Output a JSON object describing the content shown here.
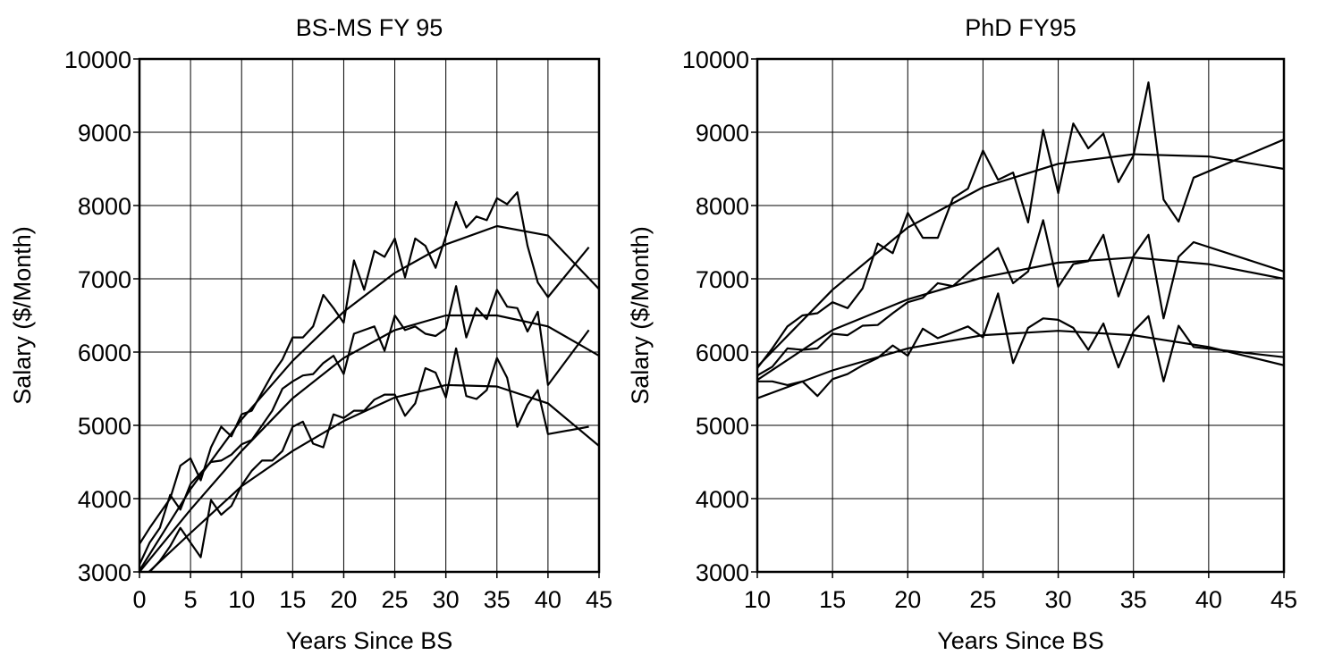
{
  "chart_data": [
    {
      "type": "line",
      "title": "BS-MS FY 95",
      "xlabel": "Years Since BS",
      "ylabel": "Salary ($/Month)",
      "xlim": [
        0,
        45
      ],
      "ylim": [
        3000,
        10000
      ],
      "xticks": [
        0,
        5,
        10,
        15,
        20,
        25,
        30,
        35,
        40,
        45
      ],
      "yticks": [
        3000,
        4000,
        5000,
        6000,
        7000,
        8000,
        9000,
        10000
      ],
      "grid": true,
      "color": "#000000",
      "series": [
        {
          "x": [
            0,
            1,
            2,
            3,
            4,
            5,
            6,
            7,
            8,
            9,
            10,
            11,
            12,
            13,
            14,
            15,
            16,
            17,
            18,
            19,
            20,
            21,
            22,
            23,
            24,
            25,
            26,
            27,
            28,
            29,
            30,
            31,
            32,
            33,
            34,
            35,
            36,
            37,
            38,
            39,
            40,
            44
          ],
          "values": [
            3380,
            3600,
            3800,
            4000,
            4450,
            4550,
            4250,
            4700,
            4980,
            4850,
            5150,
            5200,
            5450,
            5700,
            5900,
            6200,
            6200,
            6350,
            6780,
            6600,
            6400,
            7250,
            6850,
            7380,
            7300,
            7550,
            7020,
            7550,
            7450,
            7150,
            7580,
            8050,
            7700,
            7850,
            7800,
            8100,
            8020,
            8180,
            7450,
            6950,
            6750,
            7430
          ]
        },
        {
          "x": [
            0,
            1,
            2,
            3,
            4,
            5,
            6,
            7,
            8,
            9,
            10,
            11,
            12,
            13,
            14,
            15,
            16,
            17,
            18,
            19,
            20,
            21,
            22,
            23,
            24,
            25,
            26,
            27,
            28,
            29,
            30,
            31,
            32,
            33,
            34,
            35,
            36,
            37,
            38,
            39,
            40,
            44
          ],
          "values": [
            3100,
            3400,
            3600,
            4050,
            3850,
            4200,
            4350,
            4500,
            4520,
            4600,
            4740,
            4800,
            5000,
            5200,
            5500,
            5600,
            5680,
            5700,
            5850,
            5950,
            5700,
            6250,
            6300,
            6350,
            6020,
            6500,
            6300,
            6350,
            6250,
            6220,
            6320,
            6900,
            6200,
            6600,
            6450,
            6850,
            6620,
            6600,
            6280,
            6550,
            5550,
            6300
          ]
        },
        {
          "x": [
            0,
            1,
            2,
            3,
            4,
            5,
            6,
            7,
            8,
            9,
            10,
            11,
            12,
            13,
            14,
            15,
            16,
            17,
            18,
            19,
            20,
            21,
            22,
            23,
            24,
            25,
            26,
            27,
            28,
            29,
            30,
            31,
            32,
            33,
            34,
            35,
            36,
            37,
            38,
            39,
            40,
            44
          ],
          "values": [
            2950,
            3000,
            3150,
            3350,
            3600,
            3400,
            3200,
            3980,
            3780,
            3900,
            4180,
            4380,
            4520,
            4520,
            4650,
            4980,
            5050,
            4750,
            4700,
            5150,
            5100,
            5200,
            5200,
            5350,
            5420,
            5420,
            5130,
            5300,
            5780,
            5720,
            5380,
            6050,
            5400,
            5360,
            5480,
            5920,
            5650,
            4980,
            5280,
            5480,
            4880,
            4980
          ]
        },
        {
          "x": [
            0,
            5,
            10,
            15,
            20,
            25,
            30,
            35,
            40,
            45
          ],
          "values": [
            3020,
            4130,
            5080,
            5880,
            6550,
            7080,
            7470,
            7720,
            7590,
            6860
          ]
        },
        {
          "x": [
            0,
            5,
            10,
            15,
            20,
            25,
            30,
            35,
            40,
            45
          ],
          "values": [
            3000,
            3850,
            4650,
            5370,
            5920,
            6300,
            6500,
            6500,
            6350,
            5950
          ]
        },
        {
          "x": [
            0,
            5,
            10,
            15,
            20,
            25,
            30,
            35,
            40,
            45
          ],
          "values": [
            2880,
            3530,
            4170,
            4650,
            5060,
            5380,
            5550,
            5530,
            5300,
            4720
          ]
        }
      ]
    },
    {
      "type": "line",
      "title": "PhD FY95",
      "xlabel": "Years Since BS",
      "ylabel": "Salary ($/Month)",
      "xlim": [
        10,
        45
      ],
      "ylim": [
        3000,
        10000
      ],
      "xticks": [
        10,
        15,
        20,
        25,
        30,
        35,
        40,
        45
      ],
      "yticks": [
        3000,
        4000,
        5000,
        6000,
        7000,
        8000,
        9000,
        10000
      ],
      "grid": true,
      "color": "#000000",
      "series": [
        {
          "x": [
            10,
            11,
            12,
            13,
            14,
            15,
            16,
            17,
            18,
            19,
            20,
            21,
            22,
            23,
            24,
            25,
            26,
            27,
            28,
            29,
            30,
            31,
            32,
            33,
            34,
            35,
            36,
            37,
            38,
            39,
            45
          ],
          "values": [
            5780,
            6050,
            6350,
            6500,
            6530,
            6680,
            6600,
            6870,
            7480,
            7350,
            7900,
            7560,
            7560,
            8100,
            8230,
            8750,
            8350,
            8450,
            7770,
            9030,
            8170,
            9120,
            8780,
            8980,
            8320,
            8680,
            9680,
            8080,
            7780,
            8380,
            8900
          ]
        },
        {
          "x": [
            10,
            11,
            12,
            13,
            14,
            15,
            16,
            17,
            18,
            19,
            20,
            21,
            22,
            23,
            24,
            25,
            26,
            27,
            28,
            29,
            30,
            31,
            32,
            33,
            34,
            35,
            36,
            37,
            38,
            39,
            45
          ],
          "values": [
            5680,
            5800,
            6050,
            6030,
            6050,
            6250,
            6230,
            6360,
            6370,
            6530,
            6680,
            6740,
            6940,
            6900,
            7080,
            7250,
            7420,
            6940,
            7100,
            7800,
            6890,
            7200,
            7240,
            7600,
            6760,
            7310,
            7600,
            6460,
            7300,
            7500,
            7100
          ]
        },
        {
          "x": [
            10,
            11,
            12,
            13,
            14,
            15,
            16,
            17,
            18,
            19,
            20,
            21,
            22,
            23,
            24,
            25,
            26,
            27,
            28,
            29,
            30,
            31,
            32,
            33,
            34,
            35,
            36,
            37,
            38,
            39,
            45
          ],
          "values": [
            5600,
            5600,
            5550,
            5600,
            5400,
            5630,
            5700,
            5820,
            5920,
            6090,
            5950,
            6320,
            6190,
            6270,
            6350,
            6200,
            6800,
            5850,
            6330,
            6460,
            6440,
            6330,
            6030,
            6390,
            5790,
            6280,
            6490,
            5600,
            6360,
            6070,
            5930
          ]
        },
        {
          "x": [
            10,
            15,
            20,
            25,
            30,
            35,
            40,
            45
          ],
          "values": [
            5800,
            6850,
            7700,
            8250,
            8570,
            8700,
            8670,
            8500
          ]
        },
        {
          "x": [
            10,
            15,
            20,
            25,
            30,
            35,
            40,
            45
          ],
          "values": [
            5620,
            6300,
            6720,
            7020,
            7220,
            7290,
            7200,
            7000
          ]
        },
        {
          "x": [
            10,
            15,
            20,
            25,
            30,
            35,
            40,
            45
          ],
          "values": [
            5370,
            5750,
            6050,
            6230,
            6290,
            6230,
            6070,
            5820
          ]
        }
      ]
    }
  ]
}
